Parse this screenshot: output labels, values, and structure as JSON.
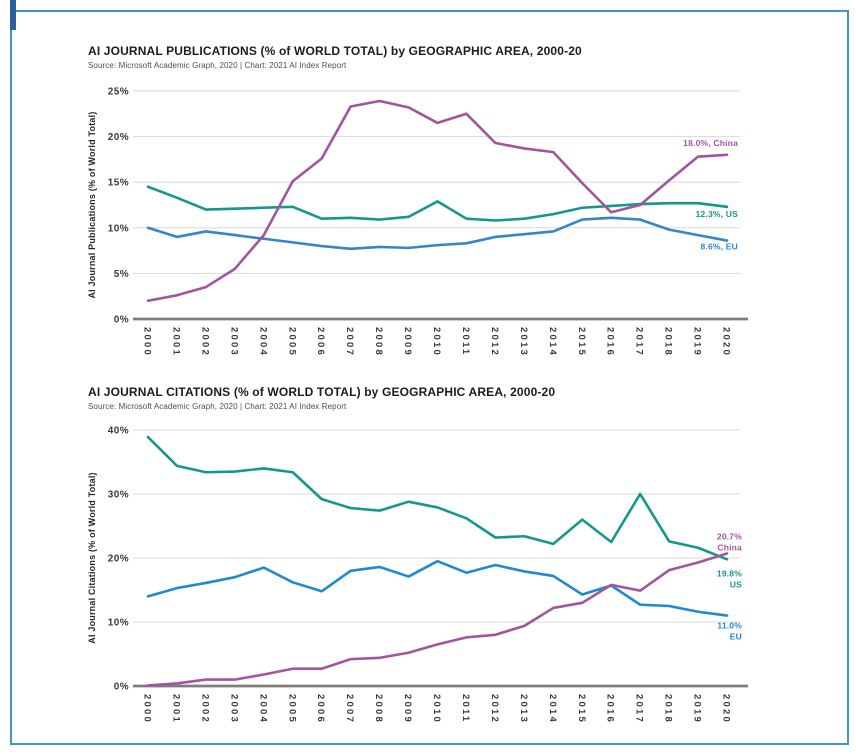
{
  "page": {
    "background": "#ffffff",
    "border_color": "#4493c8",
    "corner_mark_color": "#2d5f9e"
  },
  "chart_data": [
    {
      "type": "line",
      "title": "AI JOURNAL PUBLICATIONS (% of WORLD TOTAL) by GEOGRAPHIC AREA, 2000-20",
      "source": "Source: Microsoft Academic Graph, 2020 | Chart: 2021 AI Index Report",
      "ylabel": "AI Journal Publications (% of World Total)",
      "categories": [
        "2000",
        "2001",
        "2002",
        "2003",
        "2004",
        "2005",
        "2006",
        "2007",
        "2008",
        "2009",
        "2010",
        "2011",
        "2012",
        "2013",
        "2014",
        "2015",
        "2016",
        "2017",
        "2018",
        "2019",
        "2020"
      ],
      "ylim": [
        0,
        25
      ],
      "ytick_values": [
        0,
        5,
        10,
        15,
        20,
        25
      ],
      "ytick_labels": [
        "0%",
        "5%",
        "10%",
        "15%",
        "20%",
        "25%"
      ],
      "grid": true,
      "legend_position": "end-of-line-labels",
      "series": [
        {
          "name": "EU",
          "color": "#3585c8",
          "end_label_lines": [
            "8.6%, EU"
          ],
          "end_value": "8.6%",
          "label_dy": 9,
          "values": [
            10.0,
            9.0,
            9.6,
            9.2,
            8.8,
            8.4,
            8.0,
            7.7,
            7.9,
            7.8,
            8.1,
            8.3,
            9.0,
            9.3,
            9.6,
            10.9,
            11.1,
            10.9,
            9.8,
            9.2,
            8.6
          ]
        },
        {
          "name": "US",
          "color": "#12998b",
          "end_label_lines": [
            "12.3%, US"
          ],
          "end_value": "12.3%",
          "label_dy": 10,
          "values": [
            14.5,
            13.3,
            12.0,
            12.1,
            12.2,
            12.3,
            11.0,
            11.1,
            10.9,
            11.2,
            12.9,
            11.0,
            10.8,
            11.0,
            11.5,
            12.2,
            12.4,
            12.6,
            12.7,
            12.7,
            12.3
          ]
        },
        {
          "name": "China",
          "color": "#a2559f",
          "end_label_lines": [
            "18.0%, China"
          ],
          "end_value": "18.0%",
          "label_dy": -9,
          "values": [
            2.0,
            2.6,
            3.5,
            5.5,
            9.2,
            15.1,
            17.6,
            23.3,
            23.9,
            23.2,
            21.5,
            22.5,
            19.3,
            18.7,
            18.3,
            14.9,
            11.7,
            12.5,
            15.2,
            17.8,
            18.0
          ]
        }
      ]
    },
    {
      "type": "line",
      "title": "AI JOURNAL CITATIONS (% of WORLD TOTAL) by GEOGRAPHIC AREA, 2000-20",
      "source": "Source: Microsoft Academic Graph, 2020 | Chart: 2021 AI Index Report",
      "ylabel": "AI Journal Citations (% of World Total)",
      "categories": [
        "2000",
        "2001",
        "2002",
        "2003",
        "2004",
        "2005",
        "2006",
        "2007",
        "2008",
        "2009",
        "2010",
        "2011",
        "2012",
        "2013",
        "2014",
        "2015",
        "2016",
        "2017",
        "2018",
        "2019",
        "2020"
      ],
      "ylim": [
        0,
        40
      ],
      "ytick_values": [
        0,
        10,
        20,
        30,
        40
      ],
      "ytick_labels": [
        "0%",
        "10%",
        "20%",
        "30%",
        "40%"
      ],
      "grid": true,
      "legend_position": "end-of-line-labels",
      "series": [
        {
          "name": "EU",
          "color": "#2089d0",
          "end_label_lines": [
            "11.0%",
            "EU"
          ],
          "end_value": "11.0%",
          "label_dy": 13,
          "values": [
            14.0,
            15.3,
            16.1,
            17.0,
            18.5,
            16.2,
            14.8,
            18.0,
            18.6,
            17.1,
            19.5,
            17.7,
            18.9,
            17.9,
            17.2,
            14.3,
            15.7,
            12.7,
            12.5,
            11.6,
            11.0
          ]
        },
        {
          "name": "US",
          "color": "#12998b",
          "end_label_lines": [
            "19.8%",
            "US"
          ],
          "end_value": "19.8%",
          "label_dy": 17,
          "values": [
            38.9,
            34.4,
            33.4,
            33.5,
            34.0,
            33.4,
            29.2,
            27.8,
            27.4,
            28.8,
            27.9,
            26.2,
            23.2,
            23.4,
            22.2,
            26.0,
            22.5,
            30.0,
            22.6,
            21.6,
            19.8
          ]
        },
        {
          "name": "China",
          "color": "#a2559f",
          "end_label_lines": [
            "20.7%",
            "China"
          ],
          "end_value": "20.7%",
          "label_dy": -14,
          "values": [
            0.1,
            0.4,
            1.0,
            1.0,
            1.8,
            2.7,
            2.7,
            4.2,
            4.4,
            5.2,
            6.5,
            7.6,
            8.0,
            9.4,
            12.2,
            13.0,
            15.8,
            14.9,
            18.1,
            19.3,
            20.7
          ]
        }
      ]
    }
  ]
}
